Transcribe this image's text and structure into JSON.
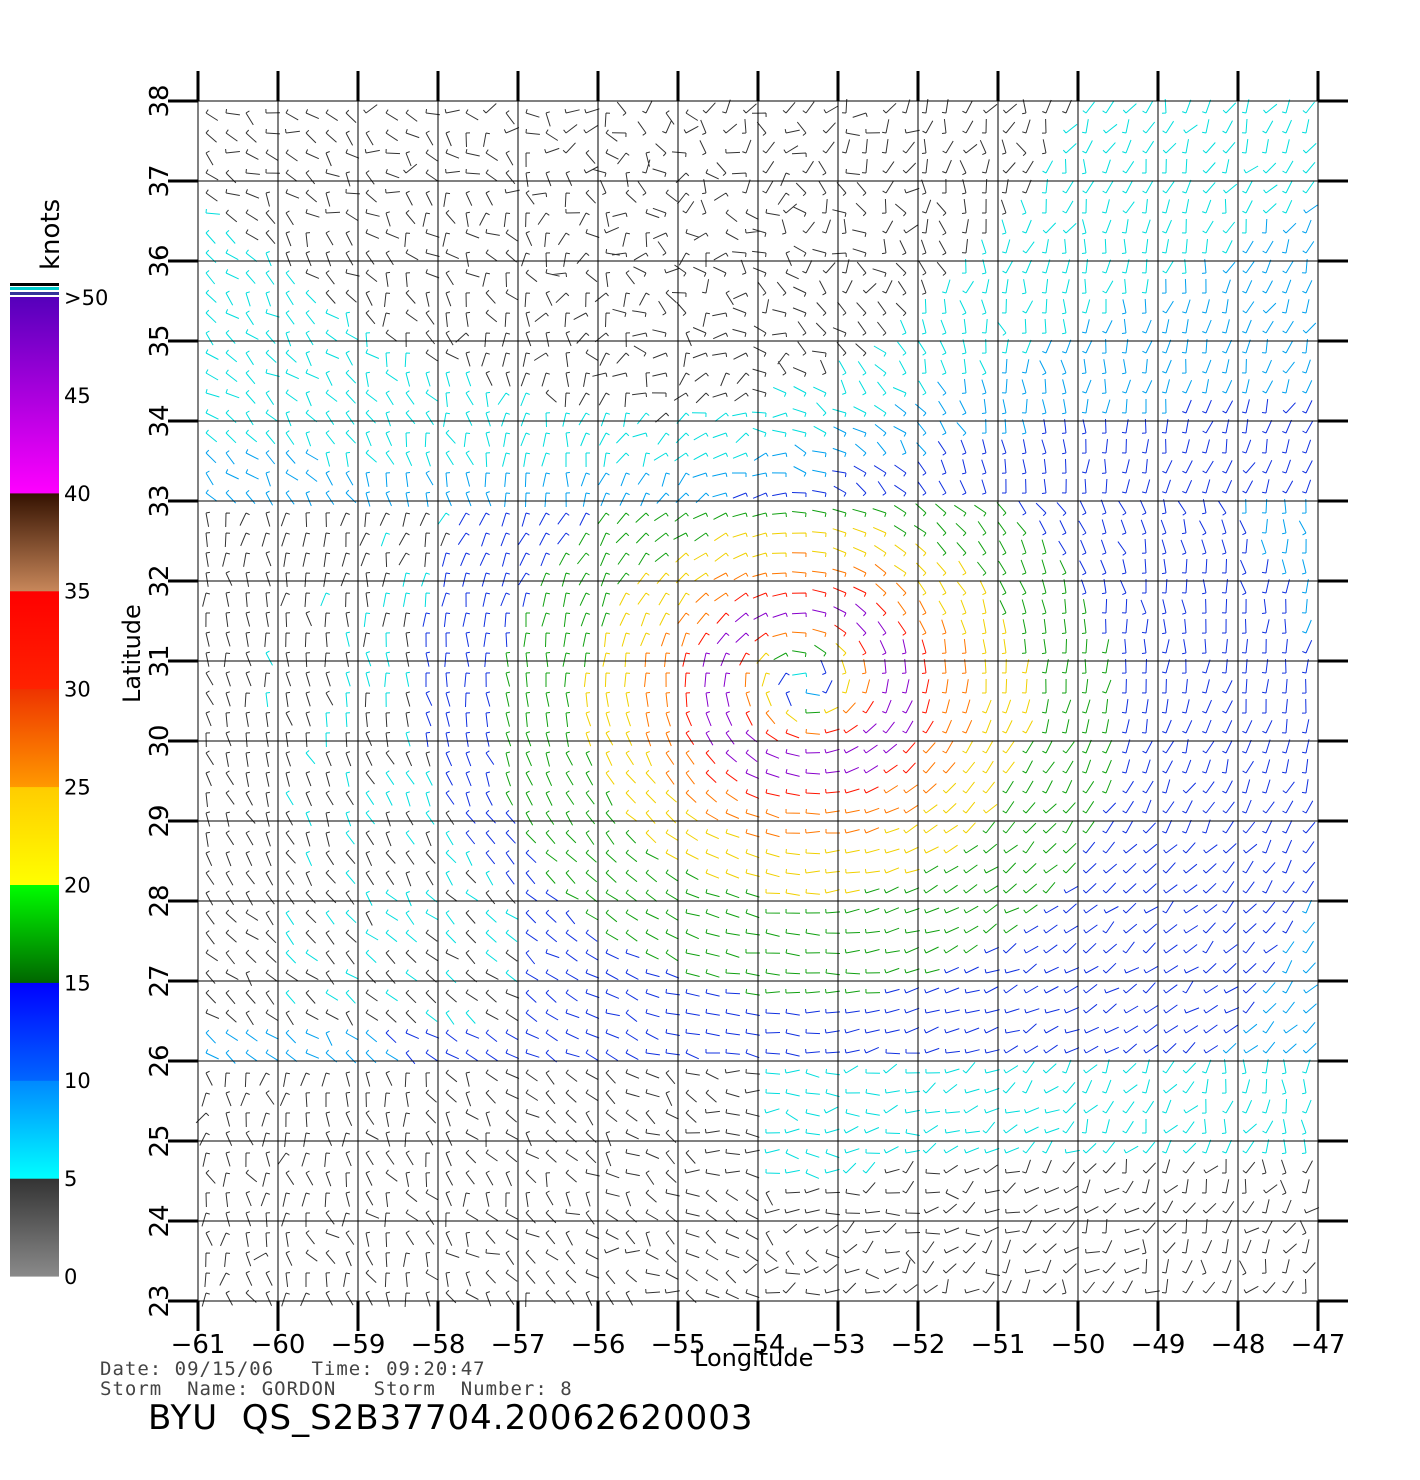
{
  "map": {
    "title": "BYU  QS_S2B37704.20062620003",
    "date_line": "Date: 09/15/06   Time: 09:20:47",
    "storm_line": "Storm  Name: GORDON   Storm  Number: 8",
    "x_label": "Longitude",
    "y_label": "Latitude",
    "lon_ticks": [
      -61,
      -60,
      -59,
      -58,
      -57,
      -56,
      -55,
      -54,
      -53,
      -52,
      -51,
      -50,
      -49,
      -48,
      -47
    ],
    "lat_ticks": [
      23,
      24,
      25,
      26,
      27,
      28,
      29,
      30,
      31,
      32,
      33,
      34,
      35,
      36,
      37,
      38
    ],
    "lon_range": [
      -61,
      -47
    ],
    "lat_range": [
      23,
      38
    ],
    "grid": true,
    "storm_center": {
      "lon": -53.4,
      "lat": 30.7
    },
    "map_features": [
      "QuikSCAT wind vectors",
      "cyclonic circulation of storm Gordon"
    ]
  },
  "colorbar": {
    "unit": "knots",
    "tick_labels": [
      "0",
      "5",
      "10",
      "15",
      "20",
      "25",
      "30",
      "35",
      "40",
      "45",
      ">50"
    ],
    "bands": [
      {
        "from": 0,
        "to": 5,
        "color_top": "#333333",
        "color_bottom": "#8a8a8a"
      },
      {
        "from": 5,
        "to": 10,
        "color_top": "#0088ff",
        "color_bottom": "#00ffff"
      },
      {
        "from": 10,
        "to": 15,
        "color_top": "#0000ff",
        "color_bottom": "#0066ff"
      },
      {
        "from": 15,
        "to": 20,
        "color_top": "#00ff00",
        "color_bottom": "#006600"
      },
      {
        "from": 20,
        "to": 25,
        "color_top": "#ffcc00",
        "color_bottom": "#ffff00"
      },
      {
        "from": 25,
        "to": 30,
        "color_top": "#ee3300",
        "color_bottom": "#ff9900"
      },
      {
        "from": 30,
        "to": 35,
        "color_top": "#ff0000",
        "color_bottom": "#ff2200"
      },
      {
        "from": 35,
        "to": 40,
        "color_top": "#331100",
        "color_bottom": "#c8875a"
      },
      {
        "from": 40,
        "to": 50,
        "color_top": "#5500bb",
        "color_bottom": "#ff00ff"
      }
    ]
  }
}
